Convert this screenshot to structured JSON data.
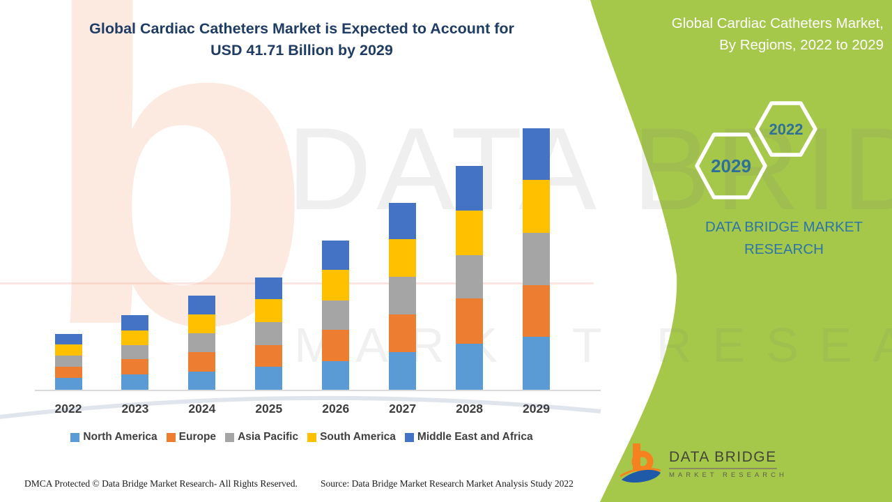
{
  "header": {
    "title_line1": "Global Cardiac Catheters Market is Expected to Account for",
    "title_line2": "USD 41.71 Billion by 2029"
  },
  "side_panel": {
    "title_line1": "Global Cardiac Catheters Market,",
    "title_line2": "By Regions, 2022 to 2029",
    "hexagon_years": [
      "2022",
      "2029"
    ],
    "brand_line1": "DATA BRIDGE MARKET",
    "brand_line2": "RESEARCH",
    "accent_green": "#A5C84A",
    "teal": "#2E75A5"
  },
  "watermarks": {
    "letter_b": "b",
    "wordmark_line1": "DATA BRIDGE",
    "wordmark_line2": "MARKET RESEARCH"
  },
  "logo": {
    "brand": "DATA BRIDGE",
    "sub": "MARKET RESEARCH",
    "orange": "#F5821F",
    "blue": "#1F5AA8"
  },
  "footer": {
    "dmca": "DMCA Protected © Data Bridge Market Research- All Rights Reserved.",
    "source": "Source: Data Bridge Market Research Market Analysis Study 2022"
  },
  "chart_data": {
    "type": "bar",
    "stacked": true,
    "title": "Global Cardiac Catheters Market is Expected to Account for USD 41.71 Billion by 2029",
    "unit": "USD Billion",
    "categories": [
      "2022",
      "2023",
      "2024",
      "2025",
      "2026",
      "2027",
      "2028",
      "2029"
    ],
    "series": [
      {
        "name": "North America",
        "color": "#5B9BD5",
        "values": [
          1.9,
          2.4,
          2.9,
          3.7,
          4.6,
          6.0,
          7.3,
          8.4
        ]
      },
      {
        "name": "Europe",
        "color": "#ED7D31",
        "values": [
          1.8,
          2.5,
          3.1,
          3.4,
          5.0,
          6.0,
          7.3,
          8.3
        ]
      },
      {
        "name": "Asia Pacific",
        "color": "#A5A5A5",
        "values": [
          1.7,
          2.2,
          3.0,
          3.7,
          4.6,
          6.0,
          6.9,
          8.3
        ]
      },
      {
        "name": "South America",
        "color": "#FFC000",
        "values": [
          1.8,
          2.3,
          3.0,
          3.6,
          4.9,
          6.0,
          7.1,
          8.4
        ]
      },
      {
        "name": "Middle East and Africa",
        "color": "#4472C4",
        "values": [
          1.7,
          2.5,
          3.0,
          3.5,
          4.7,
          5.8,
          7.1,
          8.31
        ]
      }
    ],
    "totals": [
      8.9,
      11.9,
      15.0,
      17.9,
      23.8,
      29.8,
      35.7,
      41.71
    ],
    "ylim": [
      0,
      45
    ],
    "gridlines": false,
    "y_axis_visible": false,
    "legend_position": "bottom"
  }
}
